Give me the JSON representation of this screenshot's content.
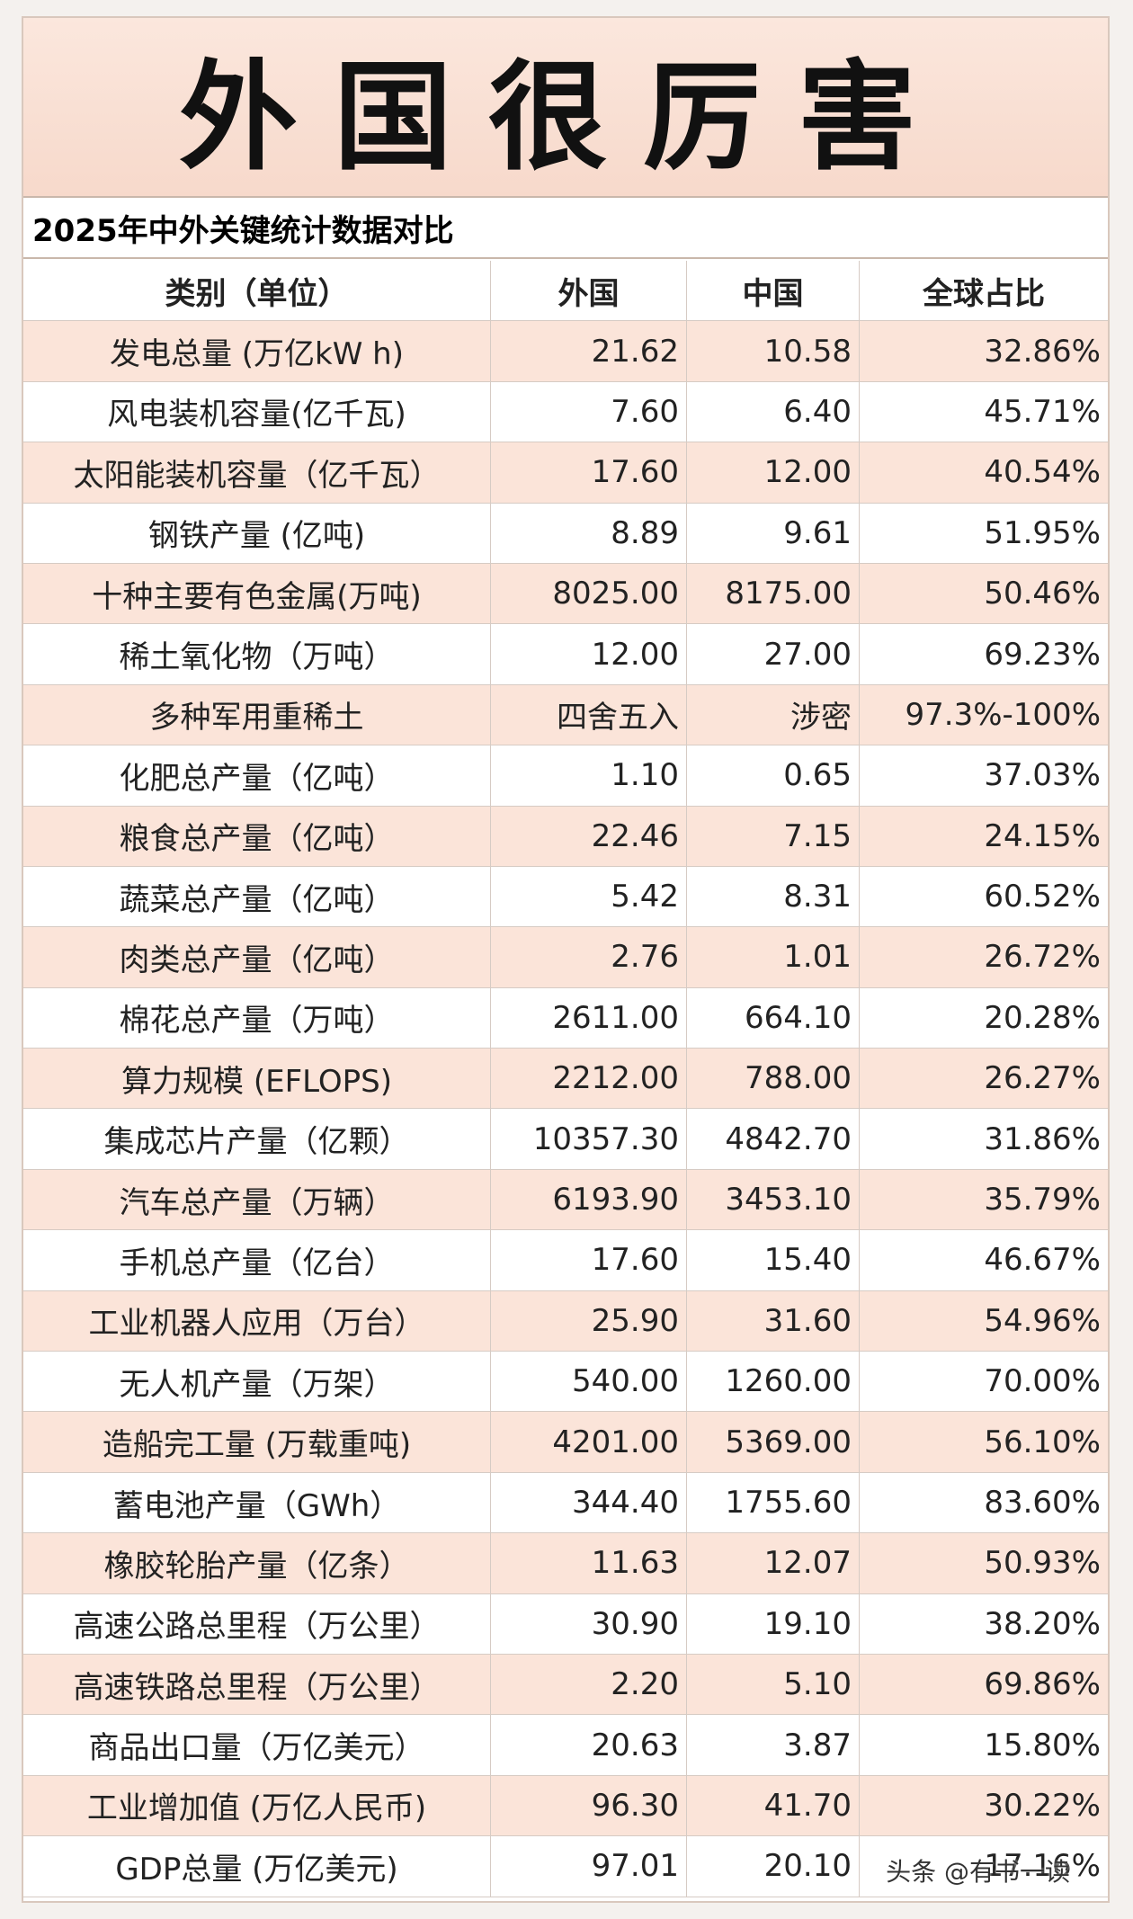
{
  "header": {
    "title": "外国很厉害",
    "subtitle": "2025年中外关键统计数据对比"
  },
  "table": {
    "columns": [
      "类别（单位）",
      "外国",
      "中国",
      "全球占比"
    ],
    "rows": [
      [
        "发电总量 (万亿kW h)",
        "21.62",
        "10.58",
        "32.86%"
      ],
      [
        "风电装机容量(亿千瓦)",
        "7.60",
        "6.40",
        "45.71%"
      ],
      [
        "太阳能装机容量（亿千瓦）",
        "17.60",
        "12.00",
        "40.54%"
      ],
      [
        "钢铁产量 (亿吨)",
        "8.89",
        "9.61",
        "51.95%"
      ],
      [
        "十种主要有色金属(万吨)",
        "8025.00",
        "8175.00",
        "50.46%"
      ],
      [
        "稀土氧化物（万吨）",
        "12.00",
        "27.00",
        "69.23%"
      ],
      [
        "多种军用重稀土",
        "四舍五入",
        "涉密",
        "97.3%-100%"
      ],
      [
        "化肥总产量（亿吨）",
        "1.10",
        "0.65",
        "37.03%"
      ],
      [
        "粮食总产量（亿吨）",
        "22.46",
        "7.15",
        "24.15%"
      ],
      [
        "蔬菜总产量（亿吨）",
        "5.42",
        "8.31",
        "60.52%"
      ],
      [
        "肉类总产量（亿吨）",
        "2.76",
        "1.01",
        "26.72%"
      ],
      [
        "棉花总产量（万吨）",
        "2611.00",
        "664.10",
        "20.28%"
      ],
      [
        "算力规模 (EFLOPS)",
        "2212.00",
        "788.00",
        "26.27%"
      ],
      [
        "集成芯片产量（亿颗）",
        "10357.30",
        "4842.70",
        "31.86%"
      ],
      [
        "汽车总产量（万辆）",
        "6193.90",
        "3453.10",
        "35.79%"
      ],
      [
        "手机总产量（亿台）",
        "17.60",
        "15.40",
        "46.67%"
      ],
      [
        "工业机器人应用（万台）",
        "25.90",
        "31.60",
        "54.96%"
      ],
      [
        "无人机产量（万架）",
        "540.00",
        "1260.00",
        "70.00%"
      ],
      [
        "造船完工量 (万载重吨)",
        "4201.00",
        "5369.00",
        "56.10%"
      ],
      [
        "蓄电池产量（GWh）",
        "344.40",
        "1755.60",
        "83.60%"
      ],
      [
        "橡胶轮胎产量（亿条）",
        "11.63",
        "12.07",
        "50.93%"
      ],
      [
        "高速公路总里程（万公里）",
        "30.90",
        "19.10",
        "38.20%"
      ],
      [
        "高速铁路总里程（万公里）",
        "2.20",
        "5.10",
        "69.86%"
      ],
      [
        "商品出口量（万亿美元）",
        "20.63",
        "3.87",
        "15.80%"
      ],
      [
        "工业增加值 (万亿人民币)",
        "96.30",
        "41.70",
        "30.22%"
      ],
      [
        "GDP总量 (万亿美元)",
        "97.01",
        "20.10",
        "17.16%"
      ]
    ]
  },
  "watermark": "头条 @有书一读"
}
